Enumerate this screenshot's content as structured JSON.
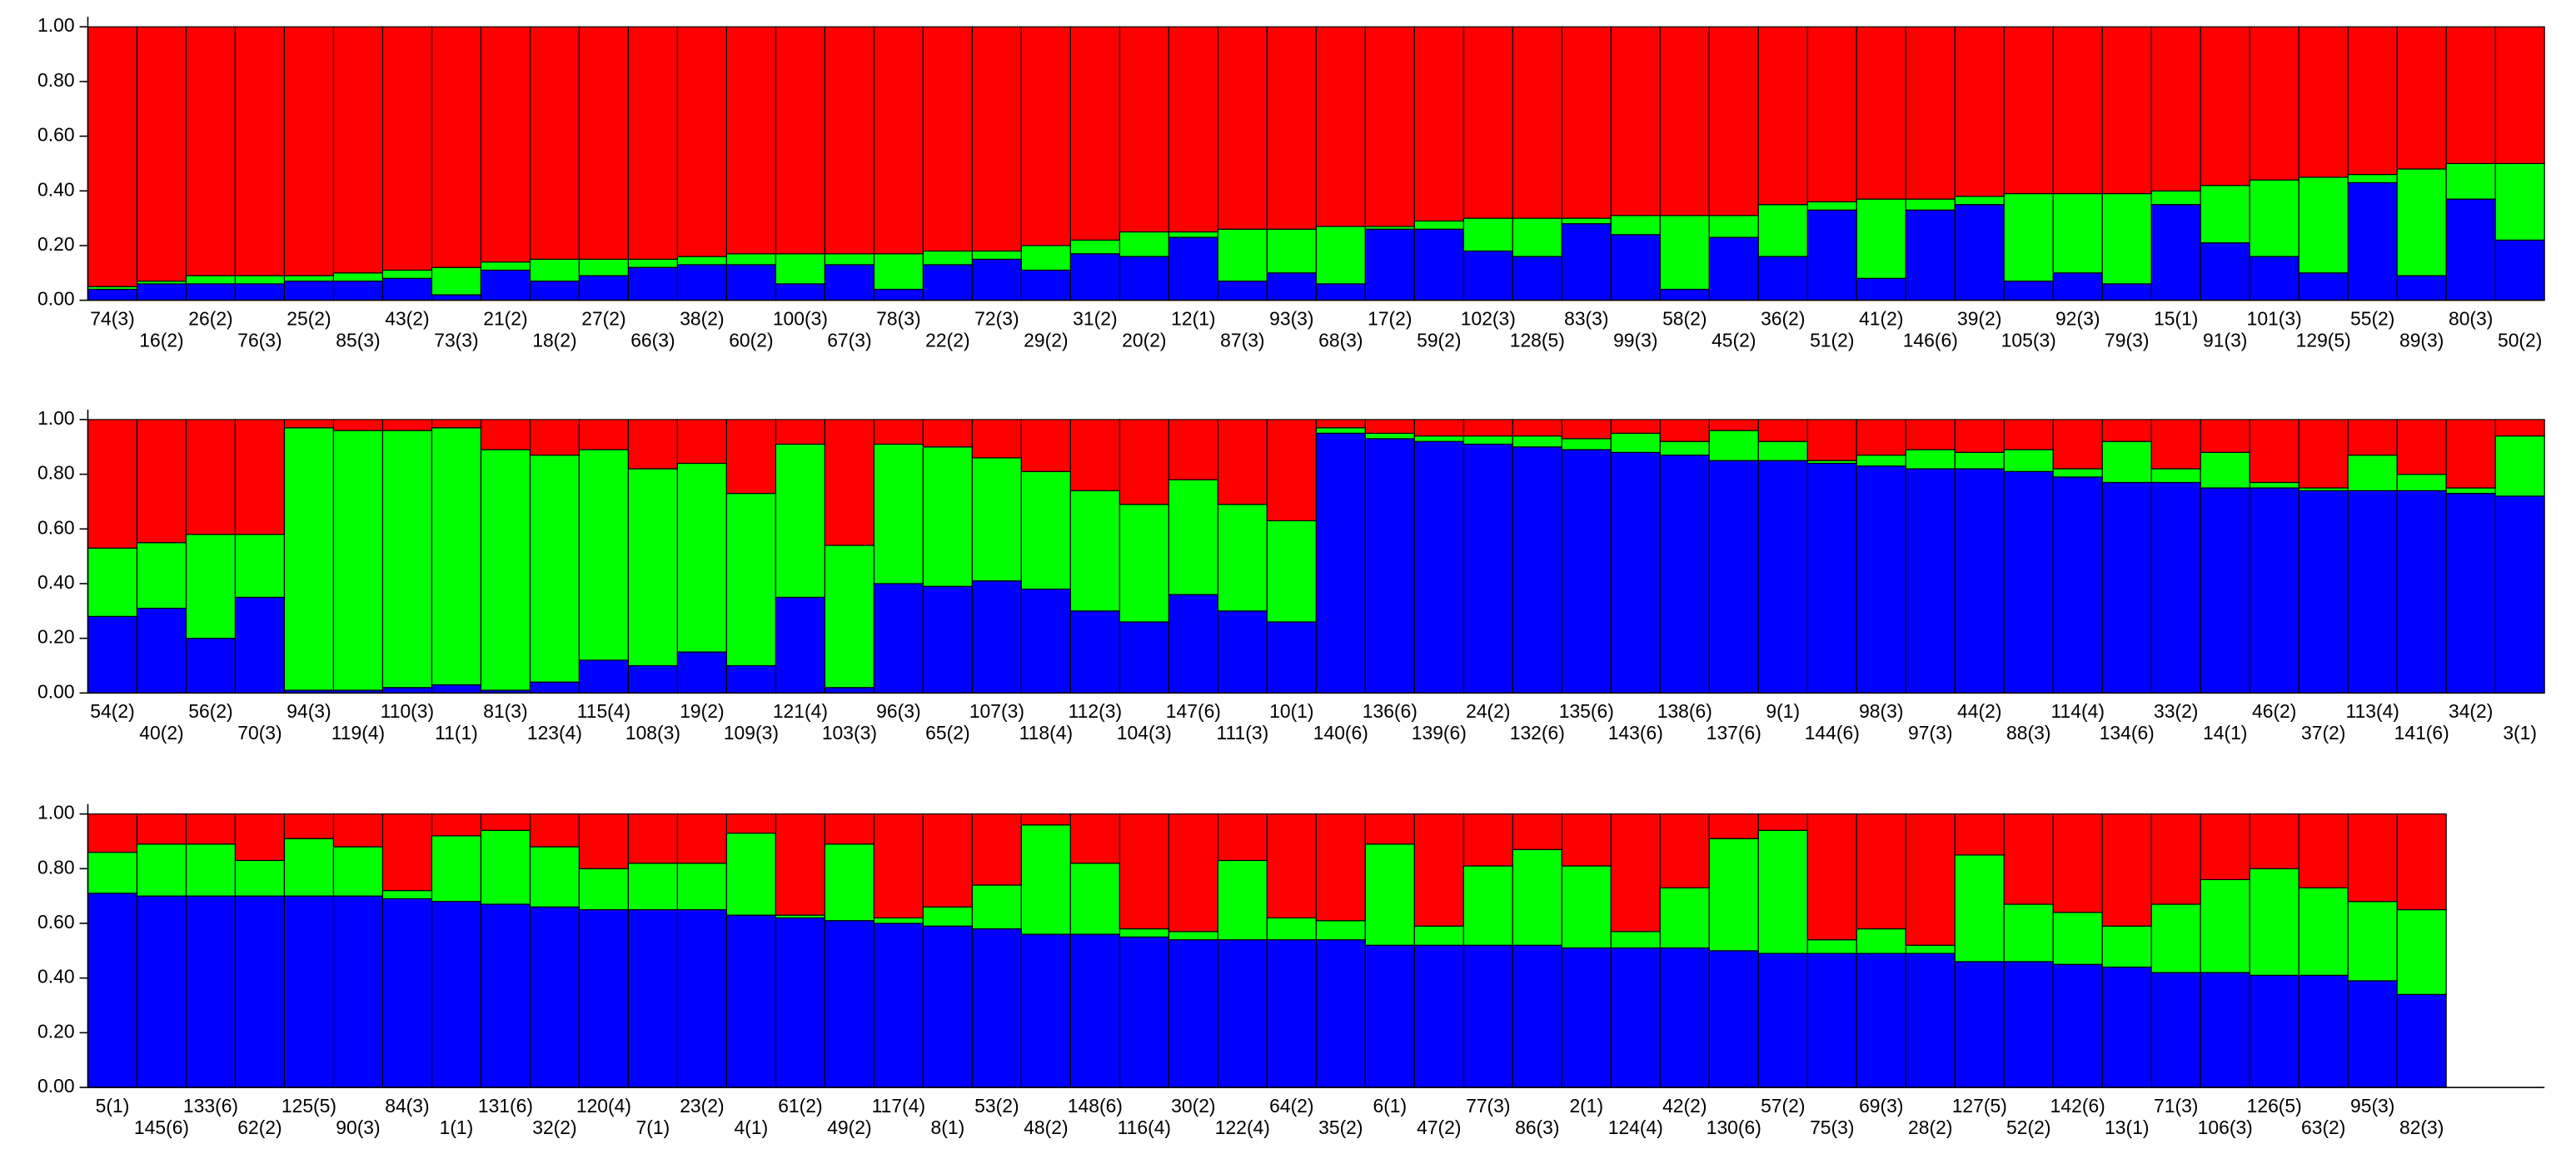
{
  "chart_data": [
    {
      "type": "bar",
      "stacked": true,
      "categories": [
        "74(3)",
        "16(2)",
        "26(2)",
        "76(3)",
        "25(2)",
        "85(3)",
        "43(2)",
        "73(3)",
        "21(2)",
        "18(2)",
        "27(2)",
        "66(3)",
        "38(2)",
        "60(2)",
        "100(3)",
        "67(3)",
        "78(3)",
        "22(2)",
        "72(3)",
        "29(2)",
        "31(2)",
        "20(2)",
        "12(1)",
        "87(3)",
        "93(3)",
        "68(3)",
        "17(2)",
        "59(2)",
        "102(3)",
        "128(5)",
        "83(3)",
        "99(3)",
        "58(2)",
        "45(2)",
        "36(2)",
        "51(2)",
        "41(2)",
        "146(6)",
        "39(2)",
        "105(3)",
        "92(3)",
        "79(3)",
        "15(1)",
        "91(3)",
        "101(3)",
        "129(5)",
        "55(2)",
        "89(3)",
        "80(3)",
        "50(2)"
      ],
      "series": [
        {
          "color": "#0000ff",
          "values": [
            0.04,
            0.06,
            0.06,
            0.06,
            0.07,
            0.07,
            0.08,
            0.02,
            0.11,
            0.07,
            0.09,
            0.12,
            0.13,
            0.13,
            0.06,
            0.13,
            0.04,
            0.13,
            0.15,
            0.11,
            0.17,
            0.16,
            0.23,
            0.07,
            0.1,
            0.06,
            0.26,
            0.26,
            0.18,
            0.16,
            0.28,
            0.24,
            0.04,
            0.23,
            0.16,
            0.33,
            0.08,
            0.33,
            0.35,
            0.07,
            0.1,
            0.06,
            0.35,
            0.21,
            0.16,
            0.1,
            0.43,
            0.09,
            0.37,
            0.22
          ]
        },
        {
          "color": "#00ff00",
          "values": [
            0.01,
            0.01,
            0.03,
            0.03,
            0.02,
            0.03,
            0.03,
            0.1,
            0.03,
            0.08,
            0.06,
            0.03,
            0.03,
            0.04,
            0.11,
            0.04,
            0.13,
            0.05,
            0.03,
            0.09,
            0.05,
            0.09,
            0.02,
            0.19,
            0.16,
            0.21,
            0.01,
            0.03,
            0.12,
            0.14,
            0.02,
            0.07,
            0.27,
            0.08,
            0.19,
            0.03,
            0.29,
            0.04,
            0.03,
            0.32,
            0.29,
            0.33,
            0.05,
            0.21,
            0.28,
            0.35,
            0.03,
            0.39,
            0.13,
            0.28
          ]
        },
        {
          "color": "#ff0000",
          "values": [
            0.95,
            0.93,
            0.91,
            0.91,
            0.91,
            0.9,
            0.89,
            0.88,
            0.86,
            0.85,
            0.85,
            0.85,
            0.84,
            0.83,
            0.83,
            0.83,
            0.83,
            0.82,
            0.82,
            0.8,
            0.78,
            0.75,
            0.75,
            0.74,
            0.74,
            0.73,
            0.73,
            0.71,
            0.7,
            0.7,
            0.7,
            0.69,
            0.69,
            0.69,
            0.65,
            0.64,
            0.63,
            0.63,
            0.62,
            0.61,
            0.61,
            0.61,
            0.6,
            0.58,
            0.56,
            0.55,
            0.54,
            0.52,
            0.5,
            0.5
          ]
        }
      ],
      "ylim": [
        0,
        1
      ],
      "yticks": [
        {
          "value": 0,
          "label": "0.00"
        },
        {
          "value": 0.2,
          "label": "0.20"
        },
        {
          "value": 0.4,
          "label": "0.40"
        },
        {
          "value": 0.6,
          "label": "0.60"
        },
        {
          "value": 0.8,
          "label": "0.80"
        },
        {
          "value": 1,
          "label": "1.00"
        }
      ]
    },
    {
      "type": "bar",
      "stacked": true,
      "categories": [
        "54(2)",
        "40(2)",
        "56(2)",
        "70(3)",
        "94(3)",
        "119(4)",
        "110(3)",
        "11(1)",
        "81(3)",
        "123(4)",
        "115(4)",
        "108(3)",
        "19(2)",
        "109(3)",
        "121(4)",
        "103(3)",
        "96(3)",
        "65(2)",
        "107(3)",
        "118(4)",
        "112(3)",
        "104(3)",
        "147(6)",
        "111(3)",
        "10(1)",
        "140(6)",
        "136(6)",
        "139(6)",
        "24(2)",
        "132(6)",
        "135(6)",
        "143(6)",
        "138(6)",
        "137(6)",
        "9(1)",
        "144(6)",
        "98(3)",
        "97(3)",
        "44(2)",
        "88(3)",
        "114(4)",
        "134(6)",
        "33(2)",
        "14(1)",
        "46(2)",
        "37(2)",
        "113(4)",
        "141(6)",
        "34(2)",
        "3(1)"
      ],
      "series": [
        {
          "color": "#0000ff",
          "values": [
            0.28,
            0.31,
            0.2,
            0.35,
            0.01,
            0.01,
            0.02,
            0.03,
            0.01,
            0.04,
            0.12,
            0.1,
            0.15,
            0.1,
            0.35,
            0.02,
            0.4,
            0.39,
            0.41,
            0.38,
            0.3,
            0.26,
            0.36,
            0.3,
            0.26,
            0.95,
            0.93,
            0.92,
            0.91,
            0.9,
            0.89,
            0.88,
            0.87,
            0.85,
            0.85,
            0.84,
            0.83,
            0.82,
            0.82,
            0.81,
            0.79,
            0.77,
            0.77,
            0.75,
            0.75,
            0.74,
            0.74,
            0.74,
            0.73,
            0.72
          ]
        },
        {
          "color": "#00ff00",
          "values": [
            0.25,
            0.24,
            0.38,
            0.23,
            0.96,
            0.95,
            0.94,
            0.94,
            0.88,
            0.83,
            0.77,
            0.72,
            0.69,
            0.63,
            0.56,
            0.52,
            0.51,
            0.51,
            0.45,
            0.43,
            0.44,
            0.43,
            0.42,
            0.39,
            0.37,
            0.02,
            0.02,
            0.02,
            0.03,
            0.04,
            0.04,
            0.07,
            0.05,
            0.11,
            0.07,
            0.01,
            0.04,
            0.07,
            0.06,
            0.08,
            0.03,
            0.15,
            0.05,
            0.13,
            0.02,
            0.01,
            0.13,
            0.06,
            0.02,
            0.22
          ]
        },
        {
          "color": "#ff0000",
          "values": [
            0.47,
            0.45,
            0.42,
            0.42,
            0.03,
            0.04,
            0.04,
            0.03,
            0.11,
            0.13,
            0.11,
            0.18,
            0.16,
            0.27,
            0.09,
            0.46,
            0.09,
            0.1,
            0.14,
            0.19,
            0.26,
            0.31,
            0.22,
            0.31,
            0.37,
            0.03,
            0.05,
            0.06,
            0.06,
            0.06,
            0.07,
            0.05,
            0.08,
            0.04,
            0.08,
            0.15,
            0.13,
            0.11,
            0.12,
            0.11,
            0.18,
            0.08,
            0.18,
            0.12,
            0.23,
            0.25,
            0.13,
            0.2,
            0.25,
            0.06
          ]
        }
      ],
      "ylim": [
        0,
        1
      ],
      "yticks": [
        {
          "value": 0,
          "label": "0.00"
        },
        {
          "value": 0.2,
          "label": "0.20"
        },
        {
          "value": 0.4,
          "label": "0.40"
        },
        {
          "value": 0.6,
          "label": "0.60"
        },
        {
          "value": 0.8,
          "label": "0.80"
        },
        {
          "value": 1,
          "label": "1.00"
        }
      ]
    },
    {
      "type": "bar",
      "stacked": true,
      "categories": [
        "5(1)",
        "145(6)",
        "133(6)",
        "62(2)",
        "125(5)",
        "90(3)",
        "84(3)",
        "1(1)",
        "131(6)",
        "32(2)",
        "120(4)",
        "7(1)",
        "23(2)",
        "4(1)",
        "61(2)",
        "49(2)",
        "117(4)",
        "8(1)",
        "53(2)",
        "48(2)",
        "148(6)",
        "116(4)",
        "30(2)",
        "122(4)",
        "64(2)",
        "35(2)",
        "6(1)",
        "47(2)",
        "77(3)",
        "86(3)",
        "2(1)",
        "124(4)",
        "42(2)",
        "130(6)",
        "57(2)",
        "75(3)",
        "69(3)",
        "28(2)",
        "127(5)",
        "52(2)",
        "142(6)",
        "13(1)",
        "71(3)",
        "106(3)",
        "126(5)",
        "63(2)",
        "95(3)",
        "82(3)"
      ],
      "series": [
        {
          "color": "#0000ff",
          "values": [
            0.71,
            0.7,
            0.7,
            0.7,
            0.7,
            0.7,
            0.69,
            0.68,
            0.67,
            0.66,
            0.65,
            0.65,
            0.65,
            0.63,
            0.62,
            0.61,
            0.6,
            0.59,
            0.58,
            0.56,
            0.56,
            0.55,
            0.54,
            0.54,
            0.54,
            0.54,
            0.52,
            0.52,
            0.52,
            0.52,
            0.51,
            0.51,
            0.51,
            0.5,
            0.49,
            0.49,
            0.49,
            0.49,
            0.46,
            0.46,
            0.45,
            0.44,
            0.42,
            0.42,
            0.41,
            0.41,
            0.39,
            0.34
          ]
        },
        {
          "color": "#00ff00",
          "values": [
            0.15,
            0.19,
            0.19,
            0.13,
            0.21,
            0.18,
            0.03,
            0.24,
            0.27,
            0.22,
            0.15,
            0.17,
            0.17,
            0.3,
            0.01,
            0.28,
            0.02,
            0.07,
            0.16,
            0.4,
            0.26,
            0.03,
            0.03,
            0.29,
            0.08,
            0.07,
            0.37,
            0.07,
            0.29,
            0.35,
            0.3,
            0.06,
            0.22,
            0.41,
            0.45,
            0.05,
            0.09,
            0.03,
            0.39,
            0.21,
            0.19,
            0.15,
            0.25,
            0.34,
            0.39,
            0.32,
            0.29,
            0.31
          ]
        },
        {
          "color": "#ff0000",
          "values": [
            0.14,
            0.11,
            0.11,
            0.17,
            0.09,
            0.12,
            0.28,
            0.08,
            0.06,
            0.12,
            0.2,
            0.18,
            0.18,
            0.07,
            0.37,
            0.11,
            0.38,
            0.34,
            0.26,
            0.04,
            0.18,
            0.42,
            0.43,
            0.17,
            0.38,
            0.39,
            0.11,
            0.41,
            0.19,
            0.13,
            0.19,
            0.43,
            0.27,
            0.09,
            0.06,
            0.46,
            0.42,
            0.48,
            0.15,
            0.33,
            0.36,
            0.41,
            0.33,
            0.24,
            0.2,
            0.27,
            0.32,
            0.35
          ]
        }
      ],
      "ylim": [
        0,
        1
      ],
      "yticks": [
        {
          "value": 0,
          "label": "0.00"
        },
        {
          "value": 0.2,
          "label": "0.20"
        },
        {
          "value": 0.4,
          "label": "0.40"
        },
        {
          "value": 0.6,
          "label": "0.60"
        },
        {
          "value": 0.8,
          "label": "0.80"
        },
        {
          "value": 1,
          "label": "1.00"
        }
      ]
    }
  ]
}
